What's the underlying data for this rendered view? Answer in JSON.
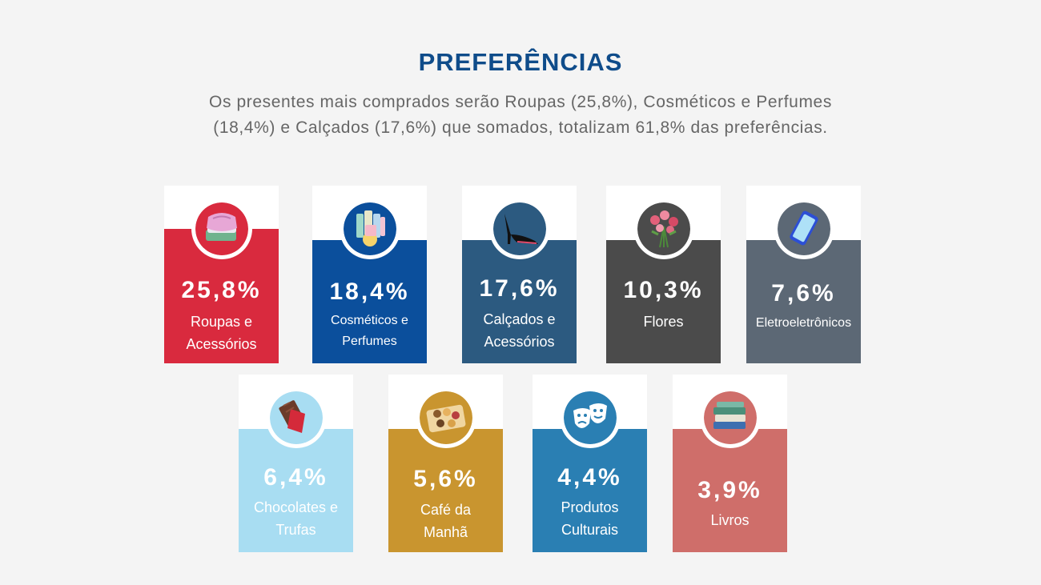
{
  "title": "PREFERÊNCIAS",
  "subtitle_line1": "Os presentes mais comprados serão Roupas (25,8%), Cosméticos e Perfumes",
  "subtitle_line2": "(18,4%) e Calçados (17,6%) que somados, totalizam 61,8% das preferências.",
  "chart_data": {
    "type": "bar",
    "categories": [
      "Roupas e Acessórios",
      "Cosméticos e Perfumes",
      "Calçados e Acessórios",
      "Flores",
      "Eletroeletrônicos",
      "Chocolates e Trufas",
      "Café da Manhã",
      "Produtos Culturais",
      "Livros"
    ],
    "values": [
      25.8,
      18.4,
      17.6,
      10.3,
      7.6,
      6.4,
      5.6,
      4.4,
      3.9
    ],
    "unit": "%"
  },
  "cards": [
    {
      "value": "25,8%",
      "label_line1": "Roupas e",
      "label_line2": "Acessórios",
      "color": "#d92a3e",
      "icon": "clothes-icon"
    },
    {
      "value": "18,4%",
      "label_line1": "Cosméticos e",
      "label_line2": "Perfumes",
      "color": "#0b4f9c",
      "icon": "cosmetics-icon"
    },
    {
      "value": "17,6%",
      "label_line1": "Calçados e",
      "label_line2": "Acessórios",
      "color": "#2c5a80",
      "icon": "high-heel-icon"
    },
    {
      "value": "10,3%",
      "label_line1": "Flores",
      "label_line2": "",
      "color": "#4b4b4b",
      "icon": "flowers-icon"
    },
    {
      "value": "7,6%",
      "label_line1": "Eletroeletrônicos",
      "label_line2": "",
      "color": "#5c6875",
      "icon": "smartphone-icon"
    },
    {
      "value": "6,4%",
      "label_line1": "Chocolates e",
      "label_line2": "Trufas",
      "color": "#a8ddf2",
      "icon": "chocolate-icon"
    },
    {
      "value": "5,6%",
      "label_line1": "Café da",
      "label_line2": "Manhã",
      "color": "#c9952f",
      "icon": "breakfast-icon"
    },
    {
      "value": "4,4%",
      "label_line1": "Produtos",
      "label_line2": "Culturais",
      "color": "#2a7fb3",
      "icon": "theater-masks-icon"
    },
    {
      "value": "3,9%",
      "label_line1": "Livros",
      "label_line2": "",
      "color": "#cf6e6a",
      "icon": "books-icon"
    }
  ]
}
